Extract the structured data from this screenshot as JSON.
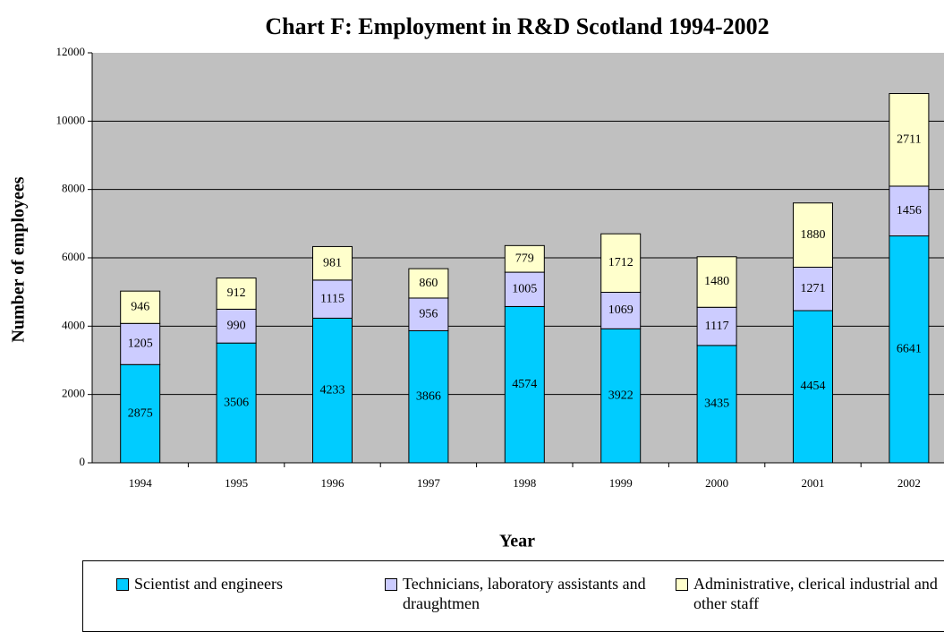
{
  "chart_data": {
    "type": "stacked_bar",
    "title": "Chart F:  Employment in R&D Scotland 1994-2002",
    "x_label": "Year",
    "y_label": "Number of employees",
    "categories": [
      "1994",
      "1995",
      "1996",
      "1997",
      "1998",
      "1999",
      "2000",
      "2001",
      "2002"
    ],
    "series": [
      {
        "name": "Scientist and engineers",
        "color": "#00ccff",
        "values": [
          2875,
          3506,
          4233,
          3866,
          4574,
          3922,
          3435,
          4454,
          6641
        ]
      },
      {
        "name": "Technicians, laboratory assistants and draughtmen",
        "color": "#ccccff",
        "values": [
          1205,
          990,
          1115,
          956,
          1005,
          1069,
          1117,
          1271,
          1456
        ]
      },
      {
        "name": "Administrative, clerical industrial and other staff",
        "color": "#ffffcc",
        "values": [
          946,
          912,
          981,
          860,
          779,
          1712,
          1480,
          1880,
          2711
        ]
      }
    ],
    "ylim": [
      0,
      12000
    ],
    "yticks": [
      0,
      2000,
      4000,
      6000,
      8000,
      10000,
      12000
    ],
    "grid": true,
    "legend": "bottom"
  }
}
